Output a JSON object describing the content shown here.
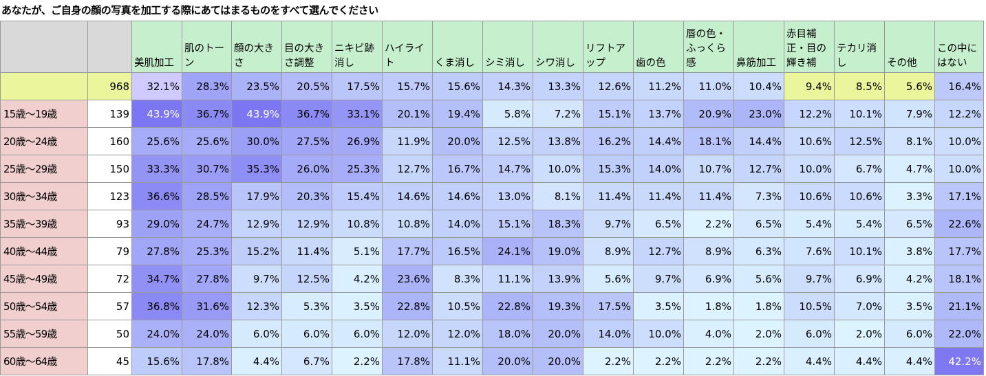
{
  "title": "あなたが、ご自身の顔の写真を加工する際にあてはまるものをすべて選んでください",
  "colors": {
    "header_gray": "#d9d9d9",
    "header_green": "#c6efce",
    "total_row_yellow": "#eaf59c",
    "age_label_pink": "#f2cfcf",
    "n_col_white": "#ffffff",
    "scale_low": "#ddf3ff",
    "scale_high": "#7c76f2"
  },
  "columns": [
    "美肌加工",
    "肌のトーン",
    "顔の大きさ",
    "目の大きさ調整",
    "ニキビ跡消し",
    "ハイライト",
    "くま消し",
    "シミ消し",
    "シワ消し",
    "リフトアップ",
    "歯の色",
    "唇の色・ふっくら感",
    "鼻筋加工",
    "赤目補正・目の輝き補",
    "テカリ消し",
    "その他",
    "この中にはない"
  ],
  "total_row": {
    "label": "",
    "n": "968",
    "values": [
      "32.1%",
      "28.3%",
      "23.5%",
      "20.5%",
      "17.5%",
      "15.7%",
      "15.6%",
      "14.3%",
      "13.3%",
      "12.6%",
      "11.2%",
      "11.0%",
      "10.4%",
      "9.4%",
      "8.5%",
      "5.6%",
      "16.4%"
    ]
  },
  "rows": [
    {
      "label": "15歳～19歳",
      "n": "139",
      "values": [
        "43.9%",
        "36.7%",
        "43.9%",
        "36.7%",
        "33.1%",
        "20.1%",
        "19.4%",
        "5.8%",
        "7.2%",
        "15.1%",
        "13.7%",
        "20.9%",
        "23.0%",
        "12.2%",
        "10.1%",
        "7.9%",
        "12.2%"
      ]
    },
    {
      "label": "20歳～24歳",
      "n": "160",
      "values": [
        "25.6%",
        "25.6%",
        "30.0%",
        "27.5%",
        "26.9%",
        "11.9%",
        "20.0%",
        "12.5%",
        "13.8%",
        "16.2%",
        "14.4%",
        "18.1%",
        "14.4%",
        "10.6%",
        "12.5%",
        "8.1%",
        "10.0%"
      ]
    },
    {
      "label": "25歳～29歳",
      "n": "150",
      "values": [
        "33.3%",
        "30.7%",
        "35.3%",
        "26.0%",
        "25.3%",
        "12.7%",
        "16.7%",
        "14.7%",
        "10.0%",
        "15.3%",
        "14.0%",
        "10.7%",
        "12.7%",
        "10.0%",
        "6.7%",
        "4.7%",
        "10.0%"
      ]
    },
    {
      "label": "30歳～34歳",
      "n": "123",
      "values": [
        "36.6%",
        "28.5%",
        "17.9%",
        "20.3%",
        "15.4%",
        "14.6%",
        "14.6%",
        "13.0%",
        "8.1%",
        "11.4%",
        "11.4%",
        "11.4%",
        "7.3%",
        "10.6%",
        "10.6%",
        "3.3%",
        "17.1%"
      ]
    },
    {
      "label": "35歳～39歳",
      "n": "93",
      "values": [
        "29.0%",
        "24.7%",
        "12.9%",
        "12.9%",
        "10.8%",
        "10.8%",
        "14.0%",
        "15.1%",
        "18.3%",
        "9.7%",
        "6.5%",
        "2.2%",
        "6.5%",
        "5.4%",
        "5.4%",
        "6.5%",
        "22.6%"
      ]
    },
    {
      "label": "40歳～44歳",
      "n": "79",
      "values": [
        "27.8%",
        "25.3%",
        "15.2%",
        "11.4%",
        "5.1%",
        "17.7%",
        "16.5%",
        "24.1%",
        "19.0%",
        "8.9%",
        "12.7%",
        "8.9%",
        "6.3%",
        "7.6%",
        "10.1%",
        "3.8%",
        "17.7%"
      ]
    },
    {
      "label": "45歳～49歳",
      "n": "72",
      "values": [
        "34.7%",
        "27.8%",
        "9.7%",
        "12.5%",
        "4.2%",
        "23.6%",
        "8.3%",
        "11.1%",
        "13.9%",
        "5.6%",
        "9.7%",
        "6.9%",
        "5.6%",
        "9.7%",
        "6.9%",
        "4.2%",
        "18.1%"
      ]
    },
    {
      "label": "50歳～54歳",
      "n": "57",
      "values": [
        "36.8%",
        "31.6%",
        "12.3%",
        "5.3%",
        "3.5%",
        "22.8%",
        "10.5%",
        "22.8%",
        "19.3%",
        "17.5%",
        "3.5%",
        "1.8%",
        "1.8%",
        "10.5%",
        "7.0%",
        "3.5%",
        "21.1%"
      ]
    },
    {
      "label": "55歳～59歳",
      "n": "50",
      "values": [
        "24.0%",
        "24.0%",
        "6.0%",
        "6.0%",
        "6.0%",
        "12.0%",
        "12.0%",
        "18.0%",
        "20.0%",
        "14.0%",
        "10.0%",
        "4.0%",
        "2.0%",
        "6.0%",
        "2.0%",
        "6.0%",
        "22.0%"
      ]
    },
    {
      "label": "60歳～64歳",
      "n": "45",
      "values": [
        "15.6%",
        "17.8%",
        "4.4%",
        "6.7%",
        "2.2%",
        "17.8%",
        "11.1%",
        "20.0%",
        "20.0%",
        "2.2%",
        "2.2%",
        "2.2%",
        "2.2%",
        "4.4%",
        "4.4%",
        "4.4%",
        "42.2%"
      ]
    }
  ]
}
